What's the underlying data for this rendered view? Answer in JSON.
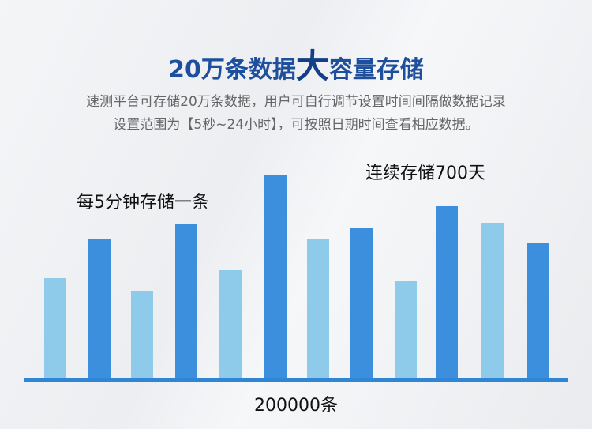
{
  "title": {
    "part1": "20万条数据",
    "emphasis": "大",
    "part2": "容量存储"
  },
  "description": [
    "速测平台可存储20万条数据，用户可自行调节设置时间间隔做数据记录",
    "设置范围为【5秒~24小时】，可按照日期时间查看相应数据。"
  ],
  "labels": {
    "interval": "每5分钟存储一条",
    "duration": "连续存储700天",
    "total": "200000条"
  },
  "colors": {
    "title": "#1d4f9c",
    "bar_light": "#8ecae9",
    "bar_dark": "#3b8fdd",
    "baseline": "#2f86d6"
  },
  "bars": [
    {
      "level": 127,
      "tone": "light"
    },
    {
      "level": 176,
      "tone": "dark"
    },
    {
      "level": 111,
      "tone": "light"
    },
    {
      "level": 196,
      "tone": "dark"
    },
    {
      "level": 137,
      "tone": "light"
    },
    {
      "level": 257,
      "tone": "dark"
    },
    {
      "level": 177,
      "tone": "light"
    },
    {
      "level": 190,
      "tone": "dark"
    },
    {
      "level": 123,
      "tone": "light"
    },
    {
      "level": 218,
      "tone": "dark"
    },
    {
      "level": 197,
      "tone": "light"
    },
    {
      "level": 171,
      "tone": "dark"
    }
  ]
}
